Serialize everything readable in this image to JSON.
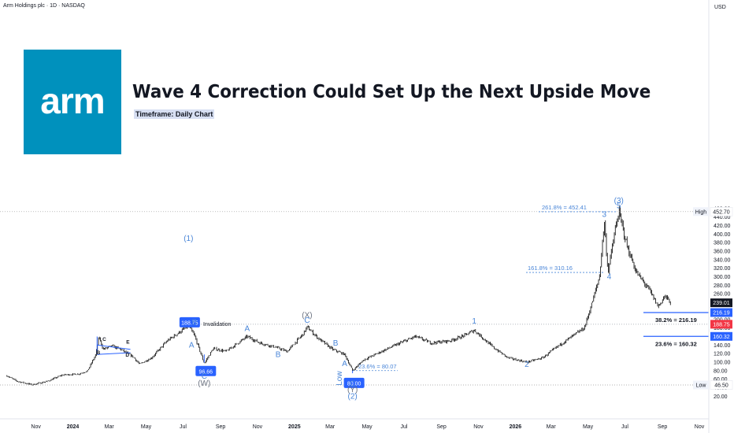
{
  "header": {
    "symbol_line": "Arm Holdings plc · 1D · NASDAQ",
    "currency": "USD"
  },
  "logo": {
    "text": "arm"
  },
  "title": "Wave 4 Correction Could Set Up the Next Upside Move",
  "subtitle": "Timeframe: Daily Chart",
  "colors": {
    "wave_label": "#4a86d8",
    "price_box": "#2962ff",
    "bar": "#000000",
    "invalidation": "#f23645"
  },
  "chart_data": {
    "type": "ohlc",
    "ylim": [
      0,
      480
    ],
    "y_ticks": [
      20,
      40,
      60,
      80,
      100,
      120,
      140,
      160,
      180,
      200,
      220,
      240,
      260,
      280,
      300,
      320,
      340,
      360,
      380,
      400,
      420,
      440,
      460
    ],
    "x_ticks": [
      "Nov",
      "2024",
      "Mar",
      "May",
      "Jul",
      "Sep",
      "Nov",
      "2025",
      "Mar",
      "May",
      "Jul",
      "Sep",
      "Nov",
      "2026",
      "Mar",
      "May",
      "Jul",
      "Sep",
      "Nov"
    ],
    "price_path": [
      [
        "2023-09-14",
        68
      ],
      [
        "2023-10-01",
        55
      ],
      [
        "2023-10-26",
        47
      ],
      [
        "2023-11-20",
        55
      ],
      [
        "2023-12-15",
        70
      ],
      [
        "2024-01-10",
        72
      ],
      [
        "2024-01-25",
        79
      ],
      [
        "2024-02-08",
        118
      ],
      [
        "2024-02-13",
        160
      ],
      [
        "2024-02-20",
        130
      ],
      [
        "2024-03-05",
        138
      ],
      [
        "2024-03-20",
        130
      ],
      [
        "2024-04-10",
        112
      ],
      [
        "2024-04-20",
        95
      ],
      [
        "2024-05-10",
        110
      ],
      [
        "2024-06-05",
        150
      ],
      [
        "2024-07-10",
        185
      ],
      [
        "2024-07-20",
        162
      ],
      [
        "2024-08-05",
        97
      ],
      [
        "2024-08-20",
        132
      ],
      [
        "2024-09-10",
        125
      ],
      [
        "2024-10-15",
        160
      ],
      [
        "2024-11-05",
        145
      ],
      [
        "2024-12-01",
        135
      ],
      [
        "2024-12-20",
        125
      ],
      [
        "2025-01-15",
        165
      ],
      [
        "2025-01-22",
        182
      ],
      [
        "2025-02-10",
        155
      ],
      [
        "2025-03-05",
        130
      ],
      [
        "2025-03-25",
        118
      ],
      [
        "2025-04-07",
        80
      ],
      [
        "2025-04-25",
        105
      ],
      [
        "2025-05-25",
        125
      ],
      [
        "2025-06-25",
        145
      ],
      [
        "2025-07-20",
        160
      ],
      [
        "2025-08-15",
        145
      ],
      [
        "2025-09-15",
        150
      ],
      [
        "2025-10-10",
        163
      ],
      [
        "2025-10-25",
        175
      ],
      [
        "2025-11-25",
        135
      ],
      [
        "2025-12-20",
        110
      ],
      [
        "2026-01-20",
        100
      ],
      [
        "2026-02-15",
        110
      ],
      [
        "2026-03-15",
        140
      ],
      [
        "2026-04-25",
        180
      ],
      [
        "2026-05-08",
        240
      ],
      [
        "2026-05-20",
        300
      ],
      [
        "2026-05-28",
        430
      ],
      [
        "2026-06-03",
        310
      ],
      [
        "2026-06-15",
        410
      ],
      [
        "2026-06-21",
        452.7
      ],
      [
        "2026-07-05",
        370
      ],
      [
        "2026-07-20",
        310
      ],
      [
        "2026-08-10",
        270
      ],
      [
        "2026-08-25",
        230
      ],
      [
        "2026-09-05",
        255
      ],
      [
        "2026-09-15",
        239
      ]
    ],
    "price_labels": [
      {
        "text": "High",
        "value": "452.70",
        "price": 452.7,
        "style": "plain"
      },
      {
        "value": "239.01",
        "price": 239,
        "style": "dark"
      },
      {
        "value": "216.19",
        "price": 216.19,
        "style": "blue"
      },
      {
        "value": "188.75",
        "price": 188.75,
        "style": "red"
      },
      {
        "value": "160.32",
        "price": 160.32,
        "style": "blue"
      },
      {
        "text": "Low",
        "value": "46.50",
        "price": 46.5,
        "style": "plain"
      }
    ],
    "fib_levels": [
      {
        "text": "261.8% = 452.41",
        "price": 452.41
      },
      {
        "text": "161.8% = 310.16",
        "price": 310.16
      },
      {
        "text": "23.6% = 80.07",
        "price": 80.07
      },
      {
        "text": "38.2% = 216.19",
        "price": 216.19
      },
      {
        "text": "23.6% = 160.32",
        "price": 160.32
      }
    ],
    "invalidation": {
      "text": "Invalidation",
      "price": 188.75
    },
    "low_price": 46.5,
    "price_boxes": [
      {
        "text": "188.75",
        "date": "2024-07-12",
        "price": 188.75
      },
      {
        "text": "96.66",
        "date": "2024-08-05",
        "price": 96.66
      },
      {
        "text": "80.00",
        "date": "2025-04-07",
        "price": 80.0
      }
    ],
    "wave_labels": [
      {
        "text": "(1)",
        "date": "2024-07-10",
        "price": 188.75,
        "anchor": "above-far"
      },
      {
        "text": "B",
        "date": "2024-07-20",
        "price": 188,
        "anchor": "label"
      },
      {
        "text": "A",
        "date": "2024-07-15",
        "price": 134,
        "anchor": "label"
      },
      {
        "text": "C",
        "date": "2024-08-05",
        "price": 61,
        "anchor": "label"
      },
      {
        "text": "(W)",
        "date": "2024-08-05",
        "price": 45,
        "anchor": "label",
        "muted": true
      },
      {
        "text": "A",
        "date": "2024-10-15",
        "price": 173,
        "anchor": "label"
      },
      {
        "text": "B",
        "date": "2024-12-05",
        "price": 112,
        "anchor": "label"
      },
      {
        "text": "(X)",
        "date": "2025-01-22",
        "price": 204,
        "anchor": "label",
        "muted": true
      },
      {
        "text": "C",
        "date": "2025-01-22",
        "price": 192,
        "anchor": "label"
      },
      {
        "text": "B",
        "date": "2025-03-10",
        "price": 139,
        "anchor": "label"
      },
      {
        "text": "A",
        "date": "2025-03-25",
        "price": 91,
        "anchor": "label"
      },
      {
        "text": "Low",
        "date": "2025-03-20",
        "price": 62,
        "anchor": "label",
        "rotate": true
      },
      {
        "text": "C",
        "date": "2025-04-07",
        "price": 44,
        "anchor": "label"
      },
      {
        "text": "(Y)",
        "date": "2025-04-07",
        "price": 30,
        "anchor": "label",
        "muted": true
      },
      {
        "text": "(2)",
        "date": "2025-04-07",
        "price": 14,
        "anchor": "label"
      },
      {
        "text": "1",
        "date": "2025-10-25",
        "price": 190,
        "anchor": "label"
      },
      {
        "text": "2",
        "date": "2026-01-20",
        "price": 89,
        "anchor": "label"
      },
      {
        "text": "3",
        "date": "2026-05-28",
        "price": 440,
        "anchor": "label"
      },
      {
        "text": "4",
        "date": "2026-06-05",
        "price": 295,
        "anchor": "label"
      },
      {
        "text": "5",
        "date": "2026-06-21",
        "price": 461,
        "anchor": "label"
      },
      {
        "text": "(3)",
        "date": "2026-06-21",
        "price": 473,
        "anchor": "label"
      }
    ],
    "triangle_labels": [
      {
        "text": "C",
        "date": "2024-02-22",
        "price": 150
      },
      {
        "text": "E",
        "date": "2024-04-01",
        "price": 143
      },
      {
        "text": "B",
        "date": "2024-02-12",
        "price": 118
      },
      {
        "text": "D",
        "date": "2024-03-31",
        "price": 113
      }
    ]
  }
}
